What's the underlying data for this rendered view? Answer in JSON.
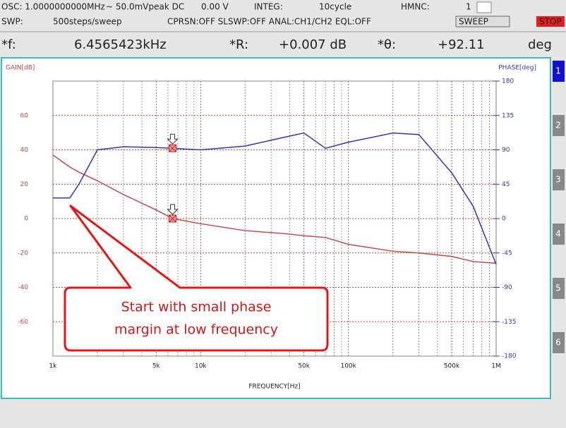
{
  "header": {
    "row1": [
      "OSC: 1.0000000000MHz",
      "~ 50.0mVpeak DC",
      "0.00 V",
      "INTEG:",
      "10cycle",
      "HMNC:",
      "1"
    ],
    "row2": [
      "SWP:",
      "500steps/sweep",
      "CPRSN:OFF SLSWP:OFF ANAL:CH1/CH2 EQL:OFF",
      "SWEEP",
      "STOP"
    ],
    "row3": [
      "*f:",
      "6.4565423kHz",
      "*R:",
      "+0.007 dB",
      "*θ:",
      "+92.11",
      "deg"
    ]
  },
  "tabs": [
    "1",
    "2",
    "3",
    "4",
    "5",
    "6"
  ],
  "chart_data": {
    "type": "line",
    "y_label": "GAIN[dB]",
    "y2_label": "PHASE[deg]",
    "x_label": "FREQUENCY[Hz]",
    "x_log": true,
    "xlim": [
      1000,
      1000000
    ],
    "xticks": [
      {
        "value": 1000,
        "label": "1k"
      },
      {
        "value": 5000,
        "label": "5k"
      },
      {
        "value": 10000,
        "label": "10k"
      },
      {
        "value": 50000,
        "label": "50k"
      },
      {
        "value": 100000,
        "label": "100k"
      },
      {
        "value": 500000,
        "label": "500k"
      },
      {
        "value": 1000000,
        "label": "1M"
      }
    ],
    "xminor_ticks": [
      2000,
      3000,
      4000,
      6000,
      7000,
      8000,
      9000,
      20000,
      30000,
      40000,
      60000,
      70000,
      80000,
      90000,
      200000,
      300000,
      400000,
      600000,
      700000,
      800000,
      900000
    ],
    "ylim": [
      -80,
      80
    ],
    "yticks": [
      -60,
      -40,
      -20,
      0,
      20,
      40,
      60
    ],
    "y2lim": [
      -180,
      180
    ],
    "y2ticks": [
      -180,
      -135,
      -90,
      -45,
      0,
      45,
      90,
      135,
      180
    ],
    "grid": true,
    "x": [
      1000,
      1300,
      1500,
      2000,
      3000,
      5000,
      6500,
      10000,
      20000,
      40000,
      50000,
      70000,
      100000,
      200000,
      300000,
      500000,
      700000,
      1000000
    ],
    "series": [
      {
        "name": "GAIN",
        "color": "#c04848",
        "axis": "y",
        "values": [
          37,
          30,
          27,
          22,
          14,
          5,
          0,
          -3,
          -7,
          -9,
          -10,
          -11,
          -15,
          -19,
          -20,
          -22,
          -25,
          -26
        ]
      },
      {
        "name": "PHASE",
        "color": "#3535b0",
        "axis": "y2",
        "values": [
          27,
          27,
          45,
          90,
          94,
          93,
          92,
          90,
          95,
          108,
          112,
          92,
          100,
          112,
          110,
          60,
          16,
          -60
        ]
      }
    ],
    "markers": [
      {
        "x": 6456.5423,
        "y": 0.007,
        "axis": "y"
      },
      {
        "x": 6456.5423,
        "y": 92.11,
        "axis": "y2"
      }
    ],
    "annotation": [
      "Start with small phase",
      "margin at low frequency"
    ]
  }
}
